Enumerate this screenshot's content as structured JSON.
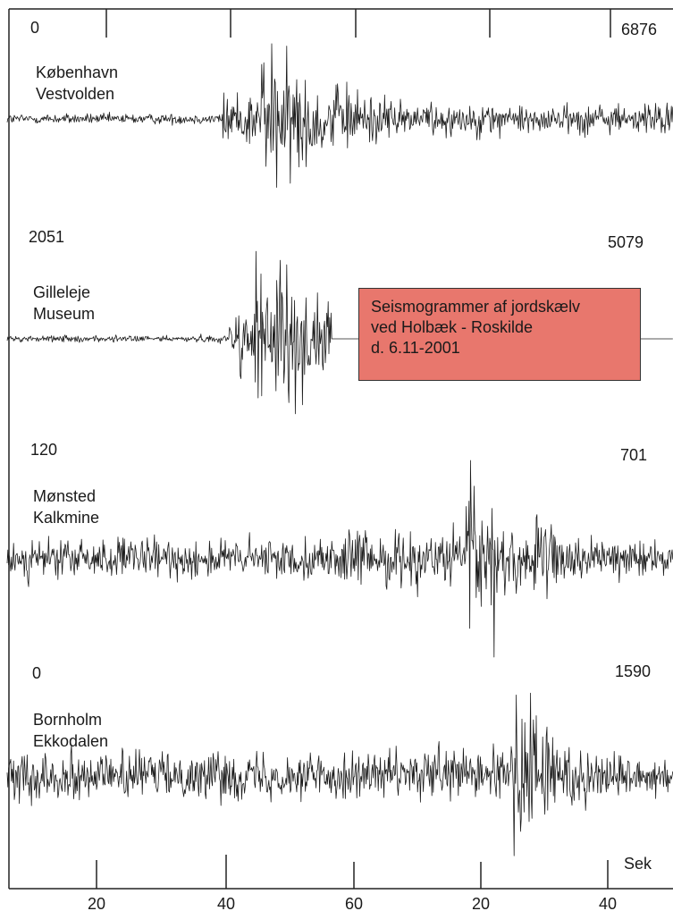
{
  "chart_data": {
    "type": "line",
    "title": "Seismogrammer af jordskælv ved Holbæk - Roskilde d. 6.11-2001",
    "callout": {
      "line1": "Seismogrammer af jordskælv",
      "line2": "ved Holbæk - Roskilde",
      "line3": "d. 6.11-2001"
    },
    "x_unit": "Sek",
    "x_tick_labels": [
      "20",
      "40",
      "60",
      "20",
      "40"
    ],
    "grid": false,
    "series": [
      {
        "name_line1": "København",
        "name_line2": "Vestvolden",
        "left_label": "0",
        "right_label": "6876",
        "p_arrival_sec": 38,
        "s_arrival_sec": 44,
        "signal_end_sec": 999,
        "noise": 0.05,
        "amplitude": 1.0
      },
      {
        "name_line1": "Gilleleje",
        "name_line2": "Museum",
        "left_label": "2051",
        "right_label": "5079",
        "p_arrival_sec": 39,
        "s_arrival_sec": 43,
        "signal_end_sec": 55,
        "noise": 0.03,
        "amplitude": 1.0
      },
      {
        "name_line1": "Mønsted",
        "name_line2": "Kalkmine",
        "left_label": "120",
        "right_label": "701",
        "p_arrival_sec": 56,
        "s_arrival_sec": 76,
        "signal_end_sec": 999,
        "noise": 0.2,
        "amplitude": 1.0
      },
      {
        "name_line1": "Bornholm",
        "name_line2": "Ekkodalen",
        "left_label": "0",
        "right_label": "1590",
        "p_arrival_sec": 67,
        "s_arrival_sec": 83,
        "signal_end_sec": 999,
        "noise": 0.25,
        "amplitude": 1.0
      }
    ]
  }
}
